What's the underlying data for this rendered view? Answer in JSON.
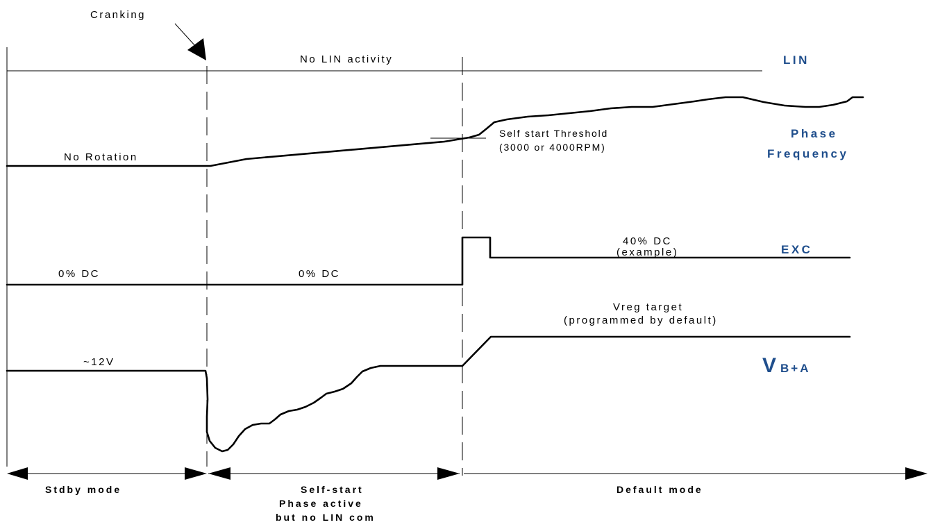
{
  "cranking_label": "Cranking",
  "signals": {
    "lin": "LIN",
    "phase_line1": "Phase",
    "phase_line2": "Frequency",
    "exc": "EXC",
    "vba_main": "V",
    "vba_sub": "B+A"
  },
  "annotations": {
    "no_lin_activity": "No LIN activity",
    "no_rotation": "No Rotation",
    "threshold_line1": "Self start Threshold",
    "threshold_line2": "(3000 or 4000RPM)",
    "exc_dc_stdby": "0% DC",
    "exc_dc_selfstart": "0% DC",
    "exc_dc_default_line1": "40% DC",
    "exc_dc_default_line2": "(example)",
    "vreg_line1": "Vreg target",
    "vreg_line2": "(programmed by default)",
    "vbat_initial": "~12V"
  },
  "modes": {
    "stdby": "Stdby mode",
    "selfstart_line1": "Self-start",
    "selfstart_line2": "Phase active",
    "selfstart_line3": "but no LIN com",
    "default": "Default mode"
  },
  "colors": {
    "signal_label": "#1f4e8c",
    "trace": "#000000"
  }
}
